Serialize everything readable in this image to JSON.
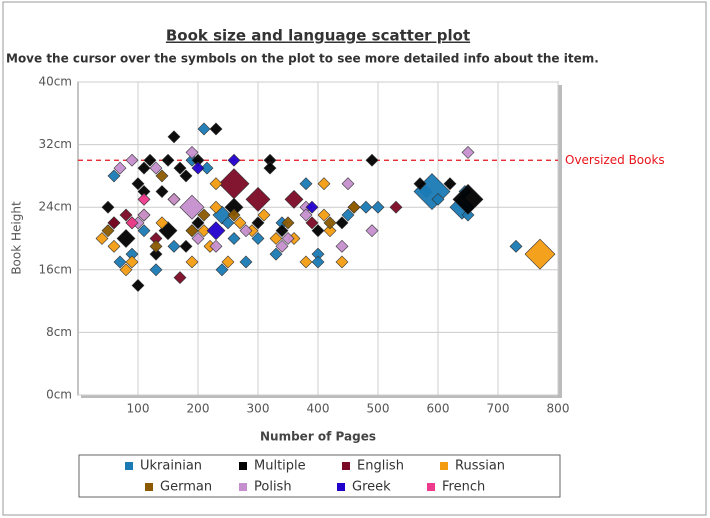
{
  "chart_data": {
    "type": "scatter",
    "title": "Book size and language scatter plot",
    "subtitle": "Move the cursor over the symbols on the plot to see more detailed info about the item.",
    "x_label": "Number of Pages",
    "y_label": "Book Height",
    "xlim": [
      0,
      800
    ],
    "ylim": [
      0,
      40
    ],
    "xticks": [
      100,
      200,
      300,
      400,
      500,
      600,
      700,
      800
    ],
    "yticks": [
      {
        "value": 0,
        "label": "0cm"
      },
      {
        "value": 8,
        "label": "8cm"
      },
      {
        "value": 16,
        "label": "16cm"
      },
      {
        "value": 24,
        "label": "24cm"
      },
      {
        "value": 32,
        "label": "32cm"
      },
      {
        "value": 40,
        "label": "40cm"
      }
    ],
    "grid": true,
    "reference_line": {
      "value": 30,
      "label": "Oversized Books",
      "color": "#e8141a"
    },
    "series": [
      {
        "name": "Ukrainian",
        "color": "#1a7ab5",
        "x": [
          210,
          190,
          215,
          60,
          580,
          590,
          600,
          640,
          645,
          650,
          730,
          380,
          400,
          400,
          450,
          480,
          500,
          240,
          250,
          260,
          280,
          240,
          130,
          70,
          90,
          330,
          160,
          110,
          300,
          340
        ],
        "values": [
          34,
          30,
          29,
          28,
          26,
          26,
          25,
          24,
          26,
          23,
          19,
          27,
          18,
          17,
          23,
          24,
          24,
          23,
          22,
          20,
          17,
          16,
          16,
          17,
          18,
          18,
          19,
          21,
          20,
          22
        ],
        "sizes": [
          1,
          1,
          1,
          1,
          1,
          3,
          1,
          2,
          1,
          1,
          1,
          1,
          1,
          1,
          1,
          1,
          1,
          1.5,
          1,
          1,
          1,
          1,
          1,
          1,
          1,
          1,
          1,
          1,
          1,
          1
        ]
      },
      {
        "name": "Multiple",
        "color": "#000000",
        "x": [
          230,
          160,
          120,
          150,
          200,
          320,
          490,
          320,
          110,
          170,
          180,
          100,
          140,
          110,
          50,
          570,
          620,
          650,
          100,
          80,
          130,
          180,
          200,
          260,
          300,
          340,
          400,
          440,
          60,
          150
        ],
        "values": [
          34,
          33,
          30,
          30,
          30,
          30,
          30,
          29,
          29,
          29,
          28,
          27,
          26,
          26,
          24,
          27,
          27,
          25,
          14,
          20,
          18,
          19,
          22,
          24,
          22,
          21,
          21,
          22,
          22,
          21
        ],
        "sizes": [
          1,
          1,
          1,
          1,
          1,
          1,
          1,
          1,
          1,
          1,
          1,
          1,
          1,
          1,
          1,
          1,
          1,
          2.5,
          1,
          1.5,
          1,
          1,
          1,
          1.5,
          1,
          1,
          1,
          1,
          1,
          1.5
        ]
      },
      {
        "name": "English",
        "color": "#7b0a25",
        "x": [
          260,
          300,
          360,
          530,
          170,
          60,
          80,
          130,
          390
        ],
        "values": [
          27,
          25,
          25,
          24,
          15,
          22,
          23,
          20,
          22
        ],
        "sizes": [
          2.5,
          2,
          1.5,
          1,
          1,
          1,
          1,
          1,
          1
        ]
      },
      {
        "name": "Russian",
        "color": "#f39c12",
        "x": [
          770,
          40,
          60,
          80,
          90,
          110,
          140,
          160,
          190,
          210,
          220,
          230,
          250,
          270,
          290,
          310,
          330,
          360,
          380,
          410,
          410,
          420,
          440,
          460,
          190,
          230
        ],
        "values": [
          18,
          20,
          19,
          16,
          17,
          23,
          22,
          25,
          17,
          21,
          19,
          24,
          17,
          22,
          21,
          23,
          20,
          20,
          17,
          27,
          23,
          21,
          17,
          24,
          21,
          27
        ],
        "sizes": [
          2.5,
          1,
          1,
          1,
          1,
          1,
          1,
          1,
          1,
          1,
          1,
          1,
          1,
          1,
          1,
          1,
          1,
          1,
          1,
          1,
          1,
          1,
          1,
          1,
          1,
          1
        ]
      },
      {
        "name": "German",
        "color": "#8b5a00",
        "x": [
          50,
          90,
          140,
          190,
          210,
          260,
          350,
          420,
          460,
          130
        ],
        "values": [
          21,
          22,
          28,
          21,
          23,
          23,
          22,
          22,
          24,
          19
        ],
        "sizes": [
          1,
          1,
          1,
          1,
          1,
          1,
          1,
          1,
          1,
          1
        ]
      },
      {
        "name": "Polish",
        "color": "#c58fcf",
        "x": [
          650,
          90,
          130,
          190,
          70,
          160,
          190,
          100,
          110,
          200,
          230,
          280,
          350,
          380,
          440,
          450,
          490,
          340,
          380
        ],
        "values": [
          31,
          30,
          29,
          31,
          29,
          25,
          24,
          22,
          23,
          20,
          19,
          21,
          20,
          24,
          19,
          27,
          21,
          19,
          23
        ],
        "sizes": [
          1,
          1,
          1,
          1,
          1,
          1,
          2,
          1,
          1,
          1,
          1,
          1,
          1,
          1,
          1,
          1,
          1,
          1,
          1
        ]
      },
      {
        "name": "Greek",
        "color": "#2200cc",
        "x": [
          260,
          230,
          390,
          200
        ],
        "values": [
          30,
          21,
          24,
          29
        ],
        "sizes": [
          1,
          1.5,
          1,
          1
        ]
      },
      {
        "name": "French",
        "color": "#ee3a8c",
        "x": [
          110,
          90
        ],
        "values": [
          25,
          22
        ],
        "sizes": [
          1,
          1
        ]
      }
    ]
  }
}
